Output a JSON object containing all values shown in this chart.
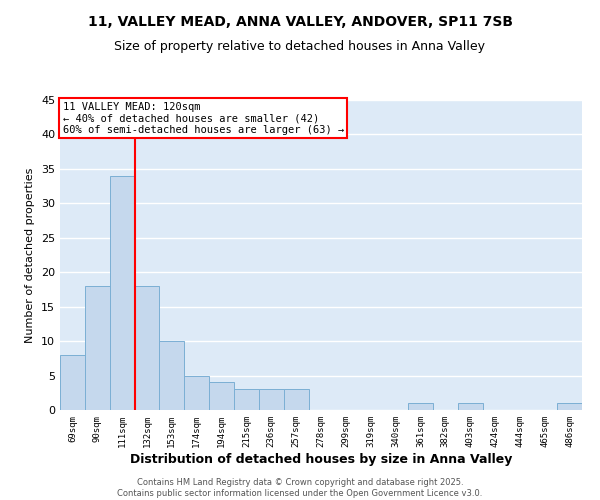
{
  "title1": "11, VALLEY MEAD, ANNA VALLEY, ANDOVER, SP11 7SB",
  "title2": "Size of property relative to detached houses in Anna Valley",
  "xlabel": "Distribution of detached houses by size in Anna Valley",
  "ylabel": "Number of detached properties",
  "categories": [
    "69sqm",
    "90sqm",
    "111sqm",
    "132sqm",
    "153sqm",
    "174sqm",
    "194sqm",
    "215sqm",
    "236sqm",
    "257sqm",
    "278sqm",
    "299sqm",
    "319sqm",
    "340sqm",
    "361sqm",
    "382sqm",
    "403sqm",
    "424sqm",
    "444sqm",
    "465sqm",
    "486sqm"
  ],
  "values": [
    8,
    18,
    34,
    18,
    10,
    5,
    4,
    3,
    3,
    3,
    0,
    0,
    0,
    0,
    1,
    0,
    1,
    0,
    0,
    0,
    1
  ],
  "bar_color": "#c5d8ed",
  "bar_edge_color": "#7bafd4",
  "red_line_x": 2.5,
  "annotation_title": "11 VALLEY MEAD: 120sqm",
  "annotation_line2": "← 40% of detached houses are smaller (42)",
  "annotation_line3": "60% of semi-detached houses are larger (63) →",
  "ylim": [
    0,
    45
  ],
  "yticks": [
    0,
    5,
    10,
    15,
    20,
    25,
    30,
    35,
    40,
    45
  ],
  "footer1": "Contains HM Land Registry data © Crown copyright and database right 2025.",
  "footer2": "Contains public sector information licensed under the Open Government Licence v3.0.",
  "background_color": "#ddeaf7",
  "fig_background": "#ffffff",
  "title_fontsize": 10,
  "subtitle_fontsize": 9
}
